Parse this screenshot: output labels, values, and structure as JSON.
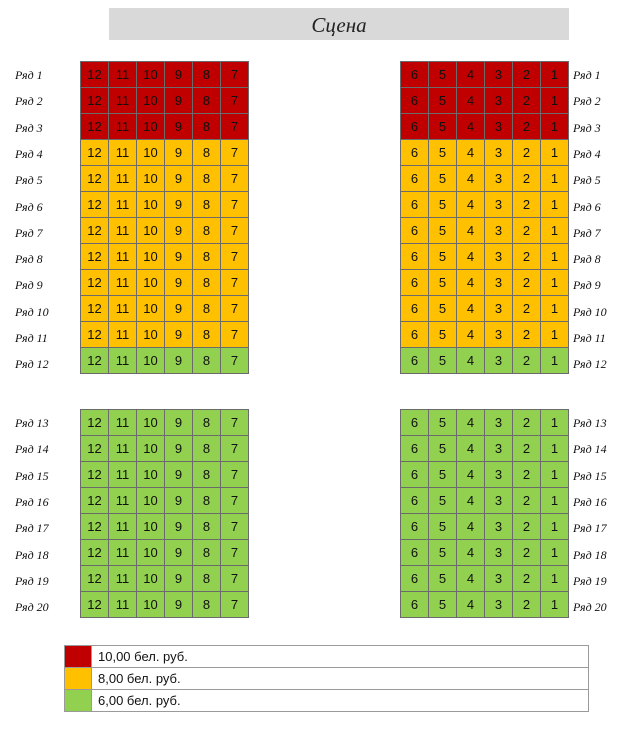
{
  "stage_label": "Сцена",
  "left_seats": [
    "12",
    "11",
    "10",
    "9",
    "8",
    "7"
  ],
  "right_seats": [
    "6",
    "5",
    "4",
    "3",
    "2",
    "1"
  ],
  "rows": [
    {
      "label": "Ряд 1",
      "tier": "price-10"
    },
    {
      "label": "Ряд 2",
      "tier": "price-10"
    },
    {
      "label": "Ряд 3",
      "tier": "price-10"
    },
    {
      "label": "Ряд 4",
      "tier": "price-8"
    },
    {
      "label": "Ряд 5",
      "tier": "price-8"
    },
    {
      "label": "Ряд 6",
      "tier": "price-8"
    },
    {
      "label": "Ряд 7",
      "tier": "price-8"
    },
    {
      "label": "Ряд 8",
      "tier": "price-8"
    },
    {
      "label": "Ряд 9",
      "tier": "price-8"
    },
    {
      "label": "Ряд 10",
      "tier": "price-8"
    },
    {
      "label": "Ряд 11",
      "tier": "price-8"
    },
    {
      "label": "Ряд 12",
      "tier": "price-6"
    },
    {
      "label": "Ряд 13",
      "tier": "price-6"
    },
    {
      "label": "Ряд 14",
      "tier": "price-6"
    },
    {
      "label": "Ряд 15",
      "tier": "price-6"
    },
    {
      "label": "Ряд 16",
      "tier": "price-6"
    },
    {
      "label": "Ряд 17",
      "tier": "price-6"
    },
    {
      "label": "Ряд 18",
      "tier": "price-6"
    },
    {
      "label": "Ряд 19",
      "tier": "price-6"
    },
    {
      "label": "Ряд 20",
      "tier": "price-6"
    }
  ],
  "legend": [
    {
      "label": "10,00 бел. руб.",
      "tier": "price-10",
      "color": "#c00000"
    },
    {
      "label": "8,00 бел. руб.",
      "tier": "price-8",
      "color": "#ffc000"
    },
    {
      "label": "6,00 бел. руб.",
      "tier": "price-6",
      "color": "#92d050"
    }
  ]
}
